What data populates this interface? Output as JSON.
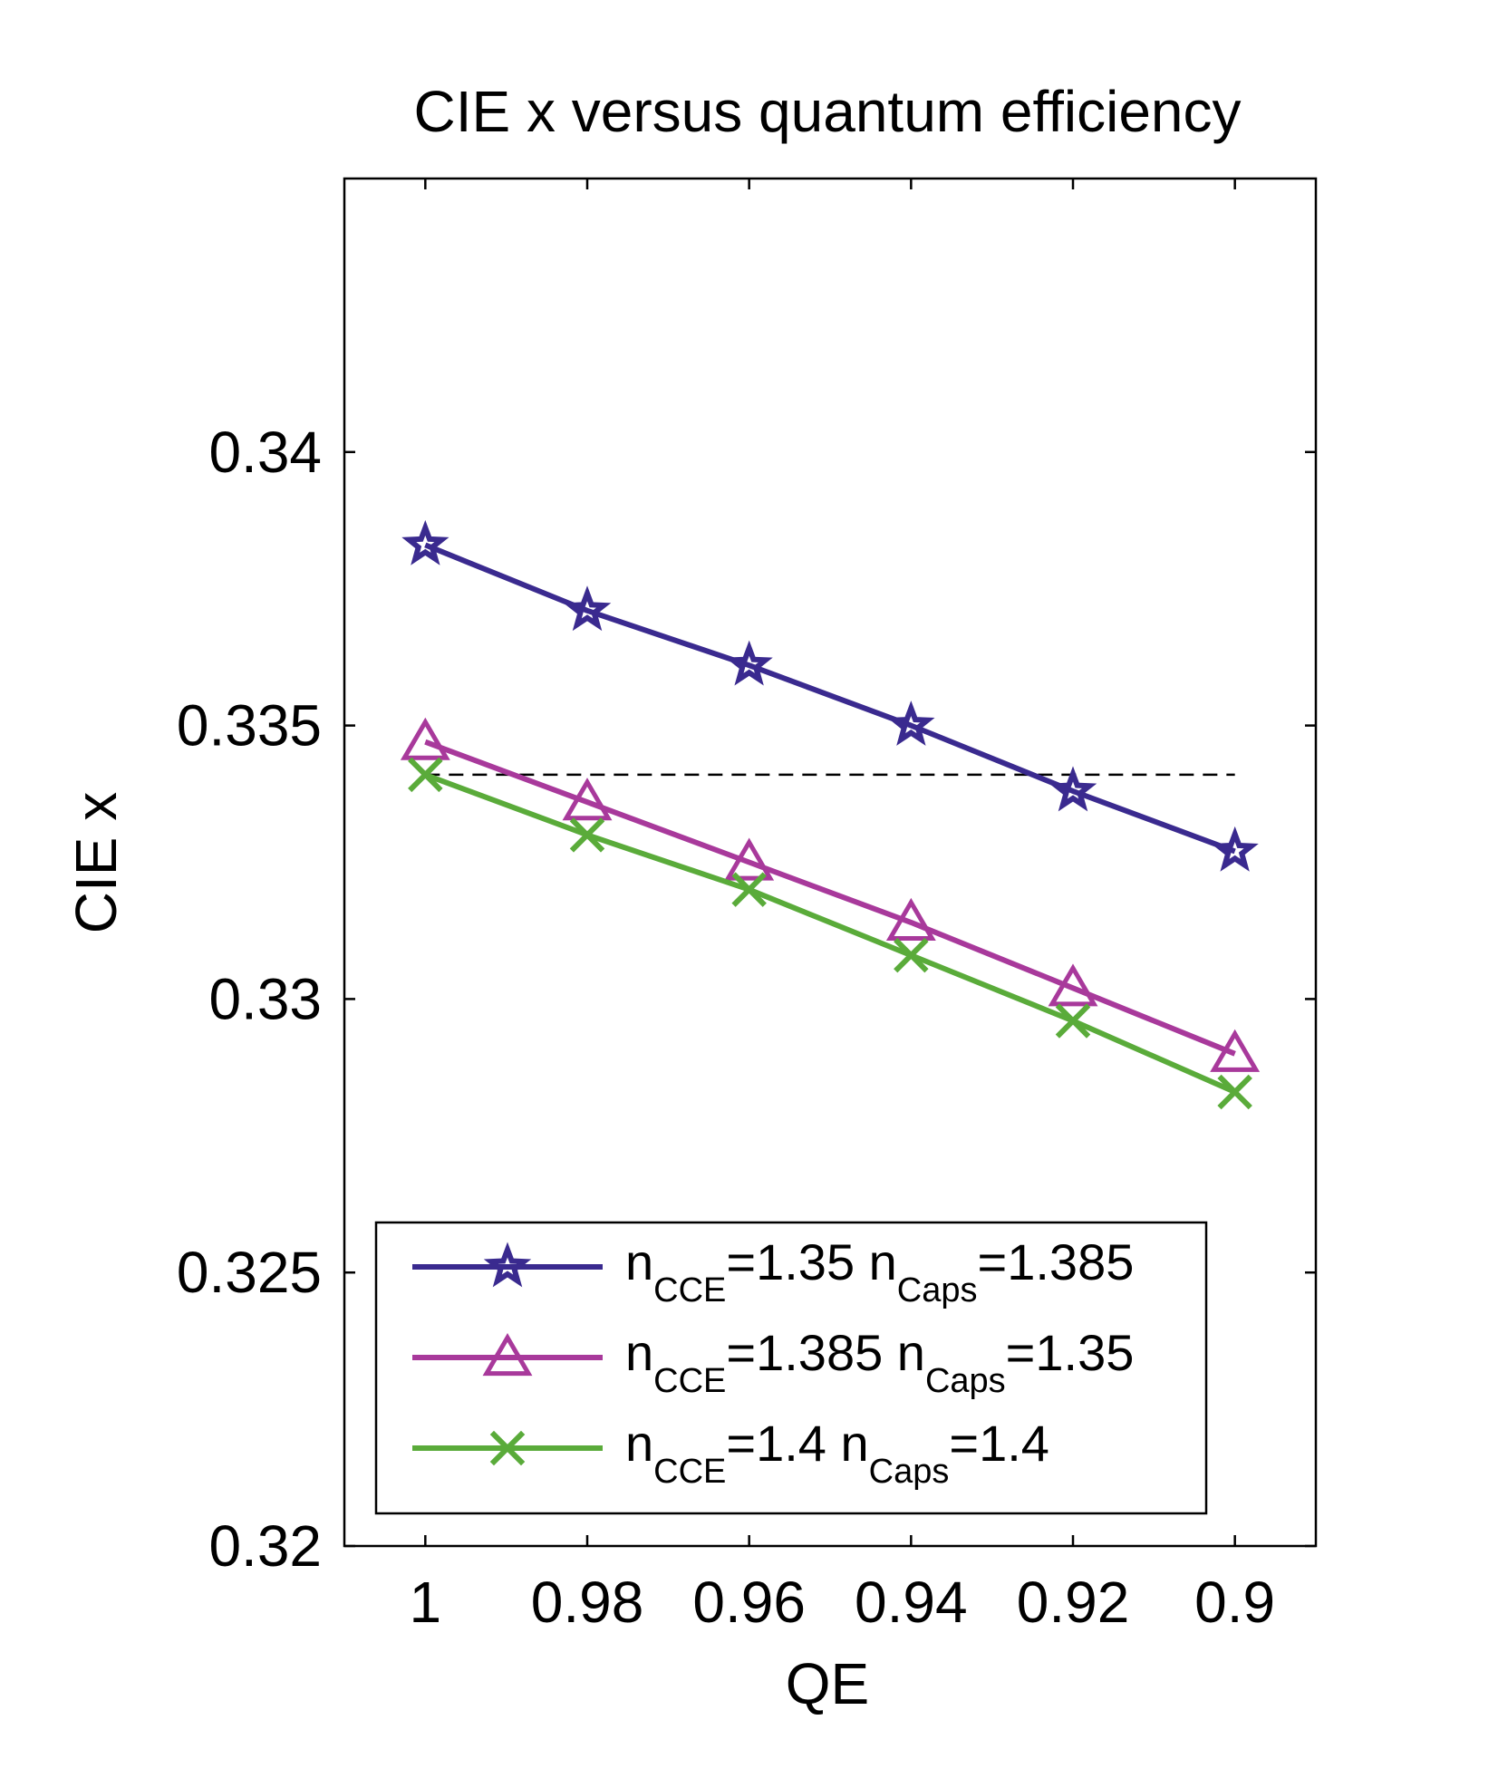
{
  "chart_data": {
    "type": "line",
    "title": "CIE x versus quantum efficiency",
    "xlabel": "QE",
    "ylabel": "CIE x",
    "x": [
      1,
      0.98,
      0.96,
      0.94,
      0.92,
      0.9
    ],
    "x_tick_labels": [
      "1",
      "0.98",
      "0.96",
      "0.94",
      "0.92",
      "0.9"
    ],
    "x_reversed": true,
    "xlim": [
      1.01,
      0.89
    ],
    "ylim": [
      0.32,
      0.345
    ],
    "y_ticks": [
      0.32,
      0.325,
      0.33,
      0.335,
      0.34
    ],
    "y_tick_labels": [
      "0.32",
      "0.325",
      "0.33",
      "0.335",
      "0.34"
    ],
    "grid": false,
    "legend_position": "bottom-center",
    "reference_line": {
      "y": 0.3341,
      "x_range": [
        1,
        0.9
      ],
      "style": "dashed",
      "color": "#000000"
    },
    "series": [
      {
        "legend": {
          "a": "n",
          "a_sub": "CCE",
          "b": "=1.35 n",
          "b_sub": "Caps",
          "c": "=1.385"
        },
        "marker": "star",
        "color": "#3a2a8f",
        "values": [
          0.3383,
          0.3371,
          0.3361,
          0.335,
          0.3338,
          0.3327
        ]
      },
      {
        "legend": {
          "a": "n",
          "a_sub": "CCE",
          "b": "=1.385 n",
          "b_sub": "Caps",
          "c": "=1.35"
        },
        "marker": "triangle",
        "color": "#a8399b",
        "values": [
          0.3347,
          0.3336,
          0.3325,
          0.3314,
          0.3302,
          0.329
        ]
      },
      {
        "legend": {
          "a": "n",
          "a_sub": "CCE",
          "b": "=1.4 n",
          "b_sub": "Caps",
          "c": "=1.4"
        },
        "marker": "x",
        "color": "#5aab3a",
        "values": [
          0.3341,
          0.333,
          0.332,
          0.3308,
          0.3296,
          0.3283
        ]
      }
    ]
  }
}
